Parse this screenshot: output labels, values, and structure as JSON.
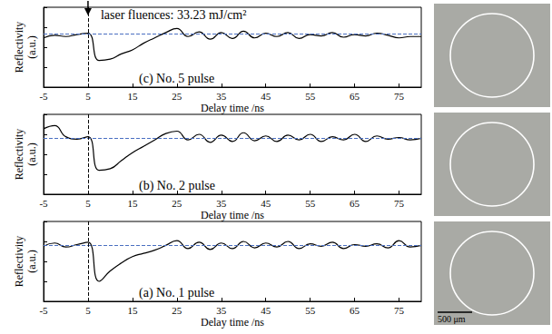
{
  "title": "laser fluences: 33.23 mJ/cm²",
  "scale_bar": "500 μm",
  "chart_data": [
    {
      "type": "line",
      "title": "(c) No. 5 pulse",
      "x_label": "Delay time /ns",
      "y_label": "Reflectivity (a.u.)",
      "color": "#000000",
      "line_style": "solid",
      "tick_labels": "x",
      "xlim": [
        -5,
        80
      ],
      "xticks": [
        -5,
        5,
        15,
        25,
        35,
        45,
        55,
        65,
        75
      ],
      "ylim": [
        0,
        12
      ],
      "yticks": [
        0,
        3,
        6,
        9,
        12
      ],
      "reference_y": 8,
      "marker_x": 5,
      "x": [
        -5,
        -2.5,
        0,
        2.5,
        5,
        7.5,
        10,
        12.5,
        15,
        17.5,
        20,
        22.5,
        25,
        27.5,
        30,
        32.5,
        35,
        37.5,
        40,
        42.5,
        45,
        47.5,
        50,
        52.5,
        55,
        57.5,
        60,
        62.5,
        65,
        67.5,
        70,
        72.5,
        75,
        77.5,
        80
      ],
      "values": [
        7.4,
        7.8,
        7.6,
        7.9,
        8.1,
        4.0,
        4.2,
        5.0,
        5.6,
        6.6,
        7.4,
        8.2,
        8.8,
        7.6,
        8.3,
        7.2,
        8.2,
        7.3,
        8.4,
        7.4,
        8.1,
        7.6,
        8.2,
        7.3,
        7.9,
        7.7,
        8.2,
        7.5,
        7.9,
        7.7,
        8.1,
        7.8,
        7.4,
        7.6,
        7.6
      ]
    },
    {
      "type": "line",
      "title": "(b) No. 2 pulse",
      "x_label": "Delay time /ns",
      "y_label": "Reflectivity (a.u.)",
      "color": "#000000",
      "line_style": "solid",
      "tick_labels": "x",
      "xlim": [
        -5,
        80
      ],
      "xticks": [
        -5,
        5,
        15,
        25,
        35,
        45,
        55,
        65,
        75
      ],
      "ylim": [
        0,
        10
      ],
      "yticks": [
        0,
        2.5,
        5,
        7.5,
        10
      ],
      "reference_y": 7,
      "marker_x": 5,
      "x": [
        -5,
        -2.5,
        0,
        2.5,
        5,
        7.5,
        10,
        12.5,
        15,
        17.5,
        20,
        22.5,
        25,
        27.5,
        30,
        32.5,
        35,
        37.5,
        40,
        42.5,
        45,
        47.5,
        50,
        52.5,
        55,
        57.5,
        60,
        62.5,
        65,
        67.5,
        70,
        72.5,
        75,
        77.5,
        80
      ],
      "values": [
        8.2,
        8.6,
        7.2,
        6.9,
        7.2,
        3.0,
        3.2,
        4.2,
        5.2,
        6.0,
        6.8,
        7.6,
        7.9,
        6.8,
        7.5,
        6.5,
        7.4,
        6.6,
        7.7,
        6.7,
        7.3,
        6.6,
        7.4,
        6.8,
        7.5,
        6.6,
        7.2,
        6.8,
        7.5,
        6.6,
        7.3,
        6.9,
        7.1,
        6.8,
        7.0
      ]
    },
    {
      "type": "line",
      "title": "(a) No. 1 pulse",
      "x_label": "Delay time /ns",
      "y_label": "Reflectivity (a.u.)",
      "color": "#000000",
      "line_style": "solid",
      "tick_labels": "x",
      "xlim": [
        -5,
        80
      ],
      "xticks": [
        -5,
        5,
        15,
        25,
        35,
        45,
        55,
        65,
        75
      ],
      "ylim": [
        0,
        10
      ],
      "yticks": [
        0,
        2.5,
        5,
        7.5,
        10
      ],
      "reference_y": 7,
      "marker_x": 5,
      "x": [
        -5,
        -2.5,
        0,
        2.5,
        5,
        7.5,
        10,
        12.5,
        15,
        17.5,
        20,
        22.5,
        25,
        27.5,
        30,
        32.5,
        35,
        37.5,
        40,
        42.5,
        45,
        47.5,
        50,
        52.5,
        55,
        57.5,
        60,
        62.5,
        65,
        67.5,
        70,
        72.5,
        75,
        77.5,
        80
      ],
      "values": [
        6.9,
        7.3,
        6.8,
        7.1,
        7.4,
        2.5,
        3.8,
        4.8,
        5.6,
        6.0,
        6.4,
        7.0,
        7.6,
        6.6,
        7.4,
        6.5,
        7.3,
        6.6,
        7.5,
        6.7,
        7.3,
        6.8,
        7.5,
        6.6,
        7.2,
        6.9,
        7.4,
        6.6,
        7.1,
        6.9,
        7.2,
        6.7,
        7.6,
        6.8,
        7.0
      ]
    }
  ]
}
